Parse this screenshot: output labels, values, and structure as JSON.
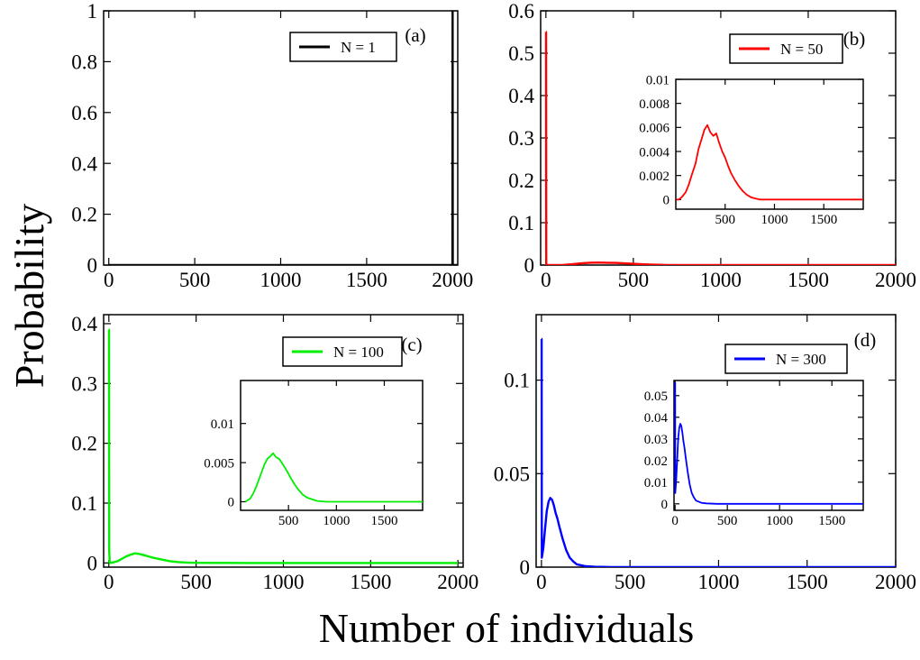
{
  "figure": {
    "ylabel": "Probability",
    "xlabel": "Number of individuals"
  },
  "chart_data": [
    {
      "panel": "(a)",
      "type": "line",
      "xlim": [
        -30,
        2030
      ],
      "ylim": [
        0,
        1
      ],
      "xticks": [
        0,
        500,
        1000,
        1500,
        2000
      ],
      "yticks": [
        0,
        0.2,
        0.4,
        0.6,
        0.8,
        1
      ],
      "ytick_labels": [
        "0",
        "0.2",
        "0.4",
        "0.6",
        "0.8",
        "1"
      ],
      "legend": "top-right",
      "series": [
        {
          "name": "N = 1",
          "color": "#000000",
          "x": [
            0,
            1995,
            1999,
            2000,
            2001,
            2005,
            2030
          ],
          "y": [
            0,
            0,
            0,
            1,
            0,
            0,
            0
          ]
        }
      ],
      "inset": null
    },
    {
      "panel": "(b)",
      "type": "line",
      "xlim": [
        -30,
        2000
      ],
      "ylim": [
        0,
        0.6
      ],
      "xticks": [
        0,
        500,
        1000,
        1500,
        2000
      ],
      "yticks": [
        0,
        0.1,
        0.2,
        0.3,
        0.4,
        0.5,
        0.6
      ],
      "ytick_labels": [
        "0",
        "0.1",
        "0.2",
        "0.3",
        "0.4",
        "0.5",
        "0.6"
      ],
      "legend": "top-right",
      "series": [
        {
          "name": "N = 50",
          "color": "#ff0000",
          "x": [
            0,
            1,
            2,
            5,
            25,
            50,
            100,
            150,
            200,
            250,
            300,
            350,
            400,
            450,
            500,
            550,
            600,
            650,
            700,
            750,
            800,
            900,
            1000,
            1500,
            2000
          ],
          "y": [
            0.55,
            0.55,
            0.0,
            0.0,
            0.0,
            0.0,
            0.0005,
            0.002,
            0.004,
            0.0055,
            0.006,
            0.0055,
            0.005,
            0.004,
            0.003,
            0.002,
            0.0012,
            0.0007,
            0.0003,
            0.0001,
            0.0,
            0.0,
            0.0,
            0.0,
            0.0
          ]
        }
      ],
      "inset": {
        "xlim": [
          0,
          1900
        ],
        "ylim": [
          -0.0008,
          0.01
        ],
        "xticks": [
          500,
          1000,
          1500
        ],
        "yticks": [
          0,
          0.002,
          0.004,
          0.006,
          0.008,
          0.01
        ],
        "ytick_labels": [
          "0",
          "0.002",
          "0.004",
          "0.006",
          "0.008",
          "0.01"
        ],
        "x": [
          5,
          30,
          60,
          100,
          130,
          160,
          200,
          230,
          260,
          290,
          320,
          350,
          380,
          410,
          440,
          470,
          500,
          530,
          560,
          600,
          640,
          680,
          720,
          760,
          800,
          850,
          900,
          1000,
          1200,
          1500,
          1900
        ],
        "y": [
          0.0,
          0.0,
          0.0002,
          0.0006,
          0.0012,
          0.002,
          0.003,
          0.0042,
          0.005,
          0.0058,
          0.0062,
          0.0056,
          0.0053,
          0.0055,
          0.0047,
          0.004,
          0.0035,
          0.0028,
          0.0022,
          0.0016,
          0.0011,
          0.0007,
          0.0004,
          0.0002,
          0.0001,
          0.0,
          0.0,
          0.0,
          0.0,
          0.0,
          0.0
        ]
      }
    },
    {
      "panel": "(c)",
      "type": "line",
      "xlim": [
        -30,
        2030
      ],
      "ylim": [
        -0.007,
        0.415
      ],
      "xticks": [
        0,
        500,
        1000,
        1500,
        2000
      ],
      "yticks": [
        0,
        0.1,
        0.2,
        0.3,
        0.4
      ],
      "ytick_labels": [
        "0",
        "0.1",
        "0.2",
        "0.3",
        "0.4"
      ],
      "legend": "top-right",
      "series": [
        {
          "name": "N = 100",
          "color": "#00ee00",
          "x": [
            0,
            1,
            2,
            5,
            25,
            50,
            75,
            100,
            125,
            150,
            175,
            200,
            250,
            300,
            350,
            400,
            450,
            500,
            600,
            800,
            1000,
            1500,
            2000
          ],
          "y": [
            0.39,
            0.39,
            0.02,
            0.0,
            0.001,
            0.003,
            0.007,
            0.011,
            0.014,
            0.016,
            0.015,
            0.013,
            0.009,
            0.006,
            0.003,
            0.0015,
            0.0007,
            0.0003,
            0.0001,
            0.0,
            0.0,
            0.0,
            0.0
          ]
        }
      ],
      "inset": {
        "xlim": [
          0,
          1900
        ],
        "ylim": [
          -0.0011,
          0.0155
        ],
        "xticks": [
          500,
          1000,
          1500
        ],
        "yticks": [
          0,
          0.005,
          0.01
        ],
        "ytick_labels": [
          "0",
          "0.005",
          "0.01"
        ],
        "x": [
          50,
          100,
          130,
          160,
          190,
          220,
          250,
          280,
          310,
          340,
          370,
          400,
          430,
          460,
          490,
          520,
          560,
          600,
          650,
          700,
          750,
          800,
          900,
          1000,
          1200,
          1500,
          1900
        ],
        "y": [
          0.0,
          0.0004,
          0.001,
          0.0018,
          0.0028,
          0.0038,
          0.0048,
          0.0055,
          0.0058,
          0.0062,
          0.0057,
          0.0055,
          0.005,
          0.0044,
          0.0038,
          0.0031,
          0.0023,
          0.0016,
          0.0009,
          0.0005,
          0.0003,
          0.0001,
          0.0,
          0.0,
          0.0,
          0.0,
          0.0
        ]
      }
    },
    {
      "panel": "(d)",
      "type": "line",
      "xlim": [
        -30,
        2000
      ],
      "ylim": [
        0,
        0.135
      ],
      "xticks": [
        0,
        500,
        1000,
        1500,
        2000
      ],
      "yticks": [
        0,
        0.05,
        0.1
      ],
      "ytick_labels": [
        "0",
        "0.05",
        "0.1"
      ],
      "legend": "top-right",
      "series": [
        {
          "name": "N = 300",
          "color": "#0000ff",
          "x": [
            0,
            1,
            2,
            10,
            20,
            30,
            40,
            50,
            60,
            70,
            80,
            90,
            100,
            120,
            140,
            160,
            180,
            200,
            250,
            300,
            400,
            500,
            1000,
            1500,
            2000
          ],
          "y": [
            0.122,
            0.122,
            0.005,
            0.01,
            0.02,
            0.03,
            0.035,
            0.037,
            0.036,
            0.033,
            0.029,
            0.026,
            0.022,
            0.015,
            0.009,
            0.005,
            0.003,
            0.0015,
            0.0005,
            0.0002,
            0.0,
            0.0,
            0.0,
            0.0,
            0.0
          ]
        }
      ],
      "inset": {
        "xlim": [
          -10,
          1800
        ],
        "ylim": [
          -0.003,
          0.057
        ],
        "xticks": [
          0,
          500,
          1000,
          1500
        ],
        "yticks": [
          0,
          0.01,
          0.02,
          0.03,
          0.04,
          0.05
        ],
        "ytick_labels": [
          "0",
          "0.01",
          "0.02",
          "0.03",
          "0.04",
          "0.05"
        ],
        "x": [
          0,
          1,
          2,
          10,
          20,
          30,
          40,
          50,
          60,
          70,
          80,
          90,
          100,
          120,
          140,
          160,
          180,
          200,
          250,
          300,
          400,
          500,
          1000,
          1500,
          1800
        ],
        "y": [
          0.056,
          0.056,
          0.005,
          0.01,
          0.02,
          0.03,
          0.035,
          0.037,
          0.036,
          0.033,
          0.029,
          0.026,
          0.022,
          0.015,
          0.009,
          0.005,
          0.003,
          0.0015,
          0.0005,
          0.0002,
          0.0,
          0.0,
          0.0,
          0.0,
          0.0
        ]
      }
    }
  ]
}
